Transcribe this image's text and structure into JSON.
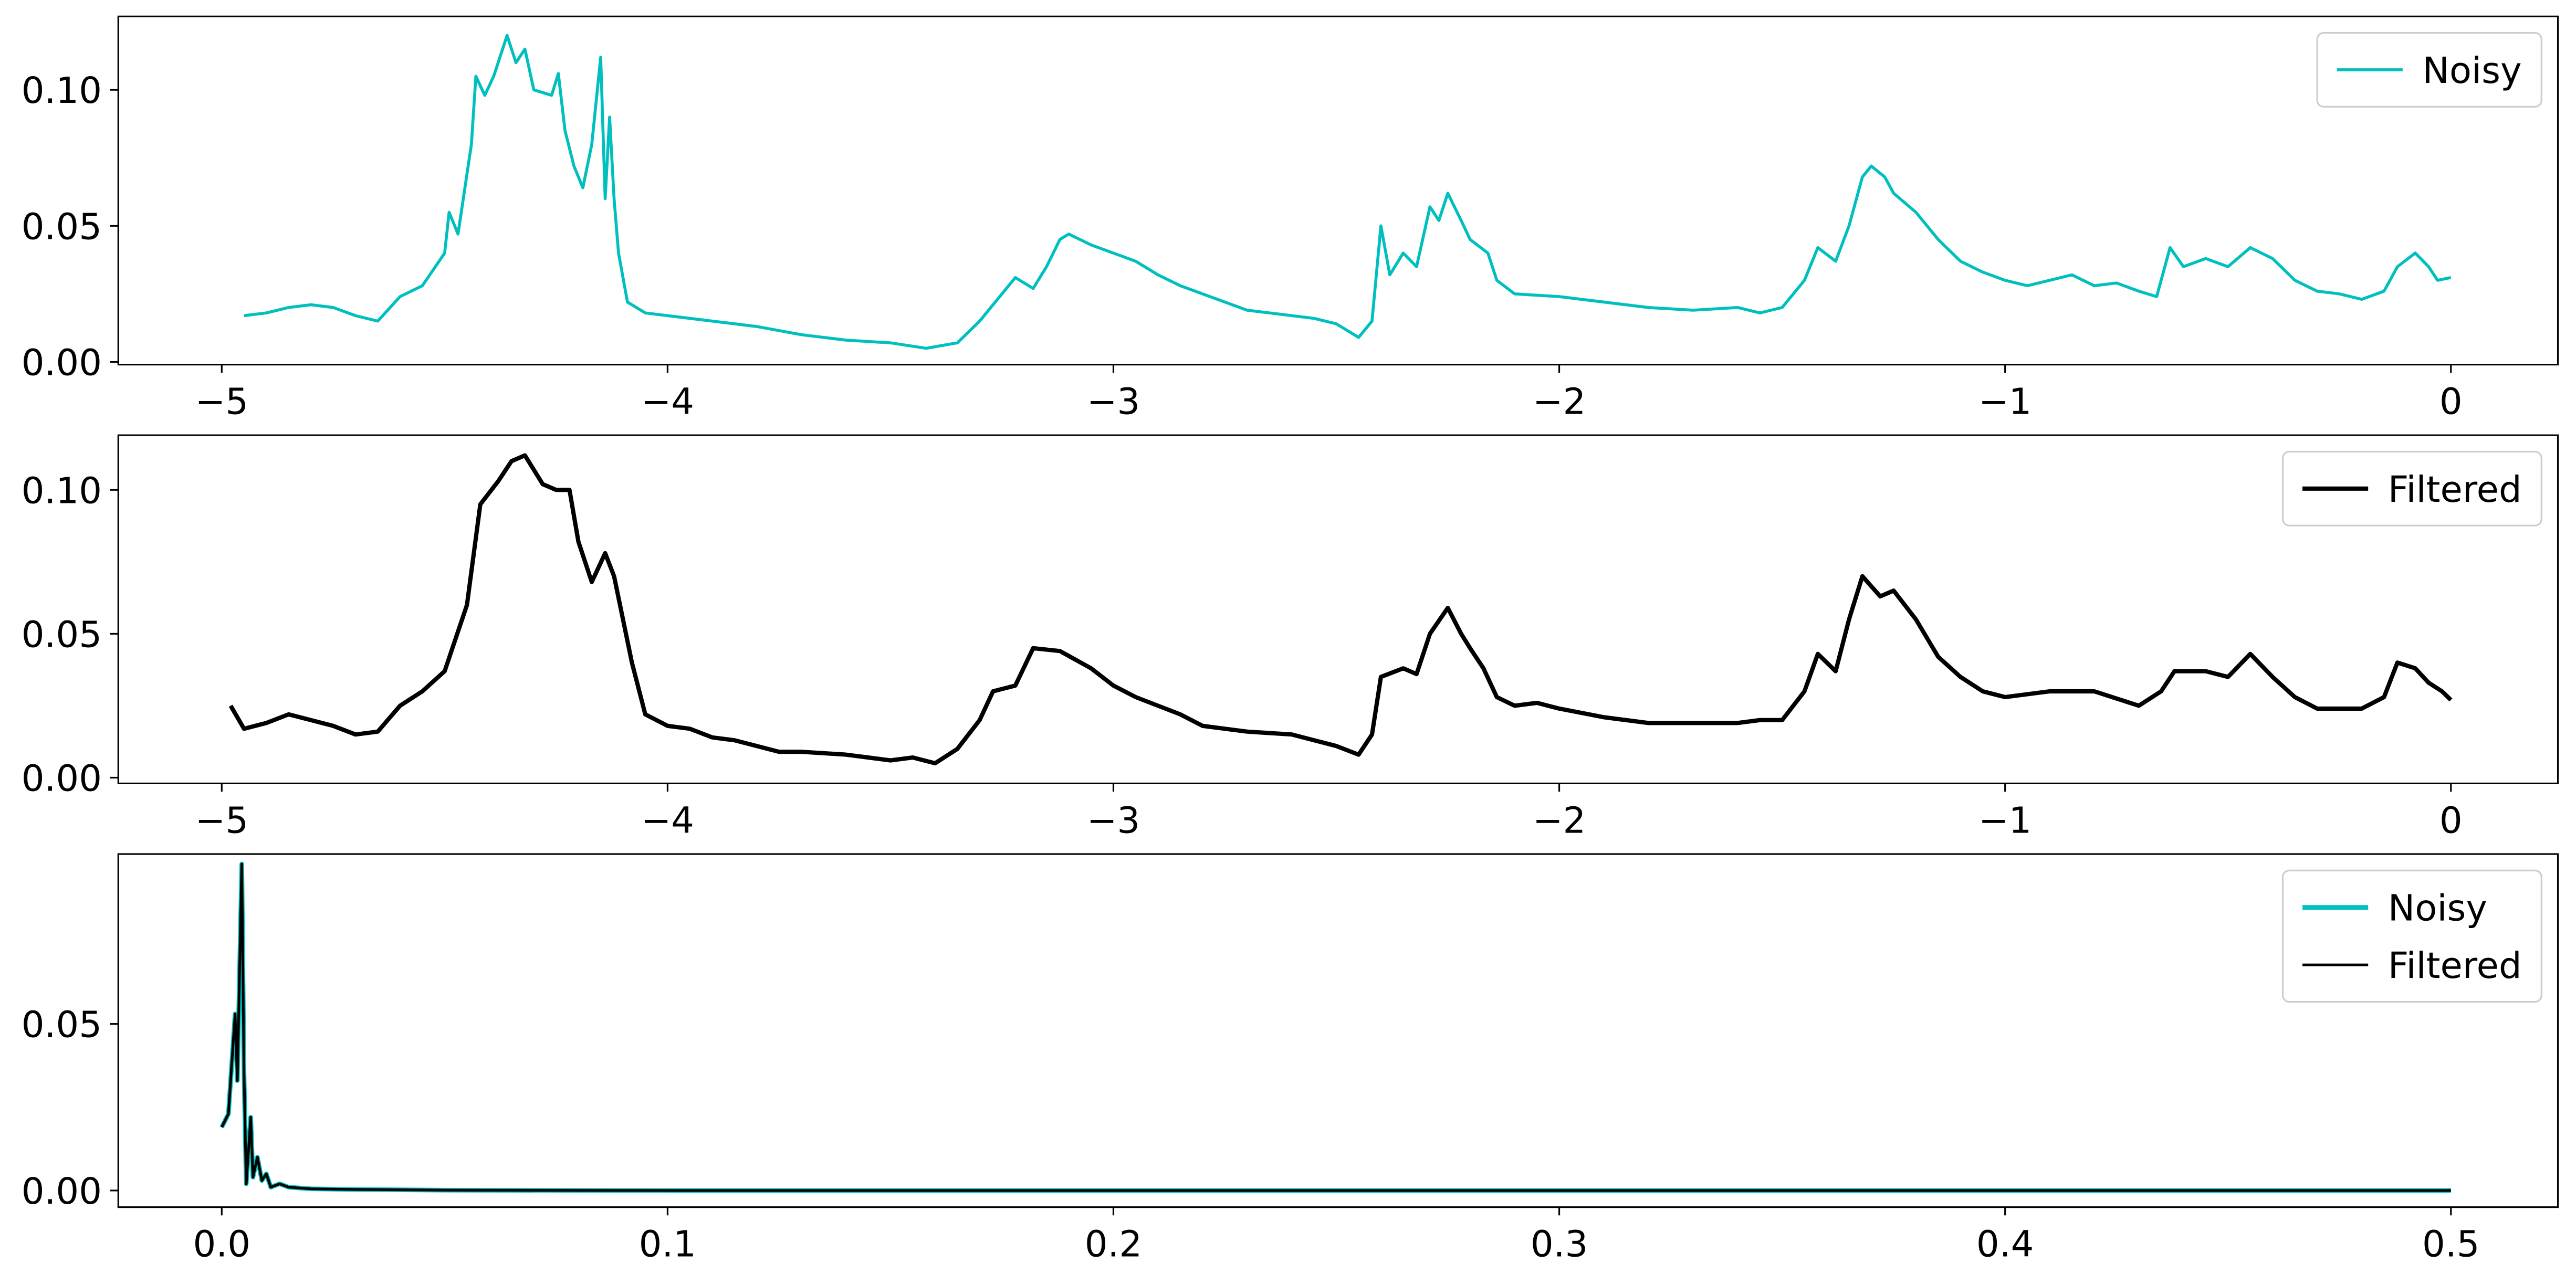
{
  "chart_data": [
    {
      "type": "line",
      "legend": "upper right",
      "xlim": [
        -5.232,
        0.24
      ],
      "ylim": [
        -0.001,
        0.127
      ],
      "xticks": [
        {
          "value": -5,
          "label": "−5"
        },
        {
          "value": -4,
          "label": "−4"
        },
        {
          "value": -3,
          "label": "−3"
        },
        {
          "value": -2,
          "label": "−2"
        },
        {
          "value": -1,
          "label": "−1"
        },
        0
      ],
      "yticks": [
        {
          "value": 0,
          "label": "0.00"
        },
        {
          "value": 0.05,
          "label": "0.05"
        },
        {
          "value": 0.1,
          "label": "0.10"
        }
      ],
      "x": [
        -4.95,
        -4.9,
        -4.85,
        -4.8,
        -4.75,
        -4.7,
        -4.65,
        -4.6,
        -4.55,
        -4.5,
        -4.49,
        -4.47,
        -4.44,
        -4.43,
        -4.41,
        -4.39,
        -4.36,
        -4.34,
        -4.32,
        -4.3,
        -4.26,
        -4.245,
        -4.23,
        -4.21,
        -4.19,
        -4.17,
        -4.15,
        -4.14,
        -4.13,
        -4.12,
        -4.11,
        -4.09,
        -4.05,
        -4.0,
        -3.9,
        -3.8,
        -3.7,
        -3.6,
        -3.5,
        -3.42,
        -3.35,
        -3.3,
        -3.25,
        -3.22,
        -3.18,
        -3.15,
        -3.12,
        -3.1,
        -3.05,
        -3.0,
        -2.95,
        -2.9,
        -2.85,
        -2.8,
        -2.75,
        -2.7,
        -2.65,
        -2.6,
        -2.55,
        -2.5,
        -2.45,
        -2.42,
        -2.4,
        -2.38,
        -2.35,
        -2.32,
        -2.29,
        -2.27,
        -2.25,
        -2.22,
        -2.2,
        -2.16,
        -2.14,
        -2.1,
        -2.0,
        -1.9,
        -1.8,
        -1.7,
        -1.6,
        -1.55,
        -1.5,
        -1.45,
        -1.42,
        -1.38,
        -1.35,
        -1.32,
        -1.3,
        -1.27,
        -1.25,
        -1.2,
        -1.15,
        -1.1,
        -1.05,
        -1.0,
        -0.95,
        -0.9,
        -0.85,
        -0.8,
        -0.75,
        -0.7,
        -0.66,
        -0.63,
        -0.6,
        -0.55,
        -0.5,
        -0.45,
        -0.4,
        -0.35,
        -0.3,
        -0.25,
        -0.2,
        -0.15,
        -0.12,
        -0.08,
        -0.05,
        -0.03,
        0
      ],
      "series": [
        {
          "name": "Noisy",
          "color": "#00bfbf",
          "values": [
            0.017,
            0.018,
            0.02,
            0.021,
            0.02,
            0.017,
            0.015,
            0.024,
            0.028,
            0.04,
            0.055,
            0.047,
            0.08,
            0.105,
            0.098,
            0.105,
            0.12,
            0.11,
            0.115,
            0.1,
            0.098,
            0.106,
            0.085,
            0.072,
            0.064,
            0.08,
            0.112,
            0.06,
            0.09,
            0.06,
            0.04,
            0.022,
            0.018,
            0.017,
            0.015,
            0.013,
            0.01,
            0.008,
            0.007,
            0.005,
            0.007,
            0.015,
            0.025,
            0.031,
            0.027,
            0.035,
            0.045,
            0.047,
            0.043,
            0.04,
            0.037,
            0.032,
            0.028,
            0.025,
            0.022,
            0.019,
            0.018,
            0.017,
            0.016,
            0.014,
            0.009,
            0.015,
            0.05,
            0.032,
            0.04,
            0.035,
            0.057,
            0.052,
            0.062,
            0.052,
            0.045,
            0.04,
            0.03,
            0.025,
            0.024,
            0.022,
            0.02,
            0.019,
            0.02,
            0.018,
            0.02,
            0.03,
            0.042,
            0.037,
            0.05,
            0.068,
            0.072,
            0.068,
            0.062,
            0.055,
            0.045,
            0.037,
            0.033,
            0.03,
            0.028,
            0.03,
            0.032,
            0.028,
            0.029,
            0.026,
            0.024,
            0.042,
            0.035,
            0.038,
            0.035,
            0.042,
            0.038,
            0.03,
            0.026,
            0.025,
            0.023,
            0.026,
            0.035,
            0.04,
            0.035,
            0.03,
            0.031
          ]
        }
      ]
    },
    {
      "type": "line",
      "legend": "upper right",
      "xlim": [
        -5.232,
        0.24
      ],
      "ylim": [
        -0.002,
        0.119
      ],
      "xticks": [
        {
          "value": -5,
          "label": "−5"
        },
        {
          "value": -4,
          "label": "−4"
        },
        {
          "value": -3,
          "label": "−3"
        },
        {
          "value": -2,
          "label": "−2"
        },
        {
          "value": -1,
          "label": "−1"
        },
        0
      ],
      "yticks": [
        {
          "value": 0,
          "label": "0.00"
        },
        {
          "value": 0.05,
          "label": "0.05"
        },
        {
          "value": 0.1,
          "label": "0.10"
        }
      ],
      "x": [
        -4.98,
        -4.95,
        -4.9,
        -4.85,
        -4.8,
        -4.75,
        -4.7,
        -4.65,
        -4.6,
        -4.55,
        -4.5,
        -4.45,
        -4.42,
        -4.38,
        -4.35,
        -4.32,
        -4.28,
        -4.25,
        -4.22,
        -4.2,
        -4.17,
        -4.14,
        -4.12,
        -4.08,
        -4.05,
        -4.0,
        -3.95,
        -3.9,
        -3.85,
        -3.8,
        -3.75,
        -3.7,
        -3.6,
        -3.5,
        -3.45,
        -3.4,
        -3.35,
        -3.3,
        -3.27,
        -3.22,
        -3.18,
        -3.12,
        -3.05,
        -3.0,
        -2.95,
        -2.85,
        -2.8,
        -2.7,
        -2.6,
        -2.5,
        -2.45,
        -2.42,
        -2.4,
        -2.35,
        -2.32,
        -2.29,
        -2.25,
        -2.22,
        -2.2,
        -2.17,
        -2.14,
        -2.1,
        -2.05,
        -2.0,
        -1.9,
        -1.8,
        -1.7,
        -1.6,
        -1.55,
        -1.5,
        -1.45,
        -1.42,
        -1.38,
        -1.35,
        -1.32,
        -1.28,
        -1.25,
        -1.2,
        -1.15,
        -1.1,
        -1.05,
        -1.0,
        -0.9,
        -0.8,
        -0.7,
        -0.65,
        -0.62,
        -0.55,
        -0.5,
        -0.45,
        -0.4,
        -0.35,
        -0.3,
        -0.2,
        -0.15,
        -0.12,
        -0.08,
        -0.05,
        -0.02,
        0
      ],
      "series": [
        {
          "name": "Filtered",
          "color": "#000000",
          "values": [
            0.025,
            0.017,
            0.019,
            0.022,
            0.02,
            0.018,
            0.015,
            0.016,
            0.025,
            0.03,
            0.037,
            0.06,
            0.095,
            0.103,
            0.11,
            0.112,
            0.102,
            0.1,
            0.1,
            0.082,
            0.068,
            0.078,
            0.07,
            0.04,
            0.022,
            0.018,
            0.017,
            0.014,
            0.013,
            0.011,
            0.009,
            0.009,
            0.008,
            0.006,
            0.007,
            0.005,
            0.01,
            0.02,
            0.03,
            0.032,
            0.045,
            0.044,
            0.038,
            0.032,
            0.028,
            0.022,
            0.018,
            0.016,
            0.015,
            0.011,
            0.008,
            0.015,
            0.035,
            0.038,
            0.036,
            0.05,
            0.059,
            0.05,
            0.045,
            0.038,
            0.028,
            0.025,
            0.026,
            0.024,
            0.021,
            0.019,
            0.019,
            0.019,
            0.02,
            0.02,
            0.03,
            0.043,
            0.037,
            0.055,
            0.07,
            0.063,
            0.065,
            0.055,
            0.042,
            0.035,
            0.03,
            0.028,
            0.03,
            0.03,
            0.025,
            0.03,
            0.037,
            0.037,
            0.035,
            0.043,
            0.035,
            0.028,
            0.024,
            0.024,
            0.028,
            0.04,
            0.038,
            0.033,
            0.03,
            0.027
          ]
        }
      ]
    },
    {
      "type": "line",
      "legend": "upper right",
      "xlim": [
        -0.0232,
        0.524
      ],
      "ylim": [
        -0.005,
        0.101
      ],
      "xticks": [
        {
          "value": 0,
          "label": "0.0"
        },
        0.1,
        0.2,
        0.3,
        0.4,
        0.5
      ],
      "yticks": [
        {
          "value": 0,
          "label": "0.00"
        },
        {
          "value": 0.05,
          "label": "0.05"
        }
      ],
      "x": [
        0,
        0.0015,
        0.003,
        0.0035,
        0.0045,
        0.005,
        0.0055,
        0.0065,
        0.007,
        0.008,
        0.009,
        0.01,
        0.011,
        0.013,
        0.015,
        0.02,
        0.03,
        0.05,
        0.1,
        0.5
      ],
      "series": [
        {
          "name": "Noisy",
          "color": "#00bfbf",
          "values": [
            0.019,
            0.023,
            0.053,
            0.033,
            0.098,
            0.035,
            0.002,
            0.022,
            0.004,
            0.01,
            0.003,
            0.005,
            0.001,
            0.002,
            0.001,
            0.0005,
            0.0003,
            0.0001,
            0,
            0
          ]
        },
        {
          "name": "Filtered",
          "color": "#000000",
          "values": [
            0.019,
            0.023,
            0.053,
            0.033,
            0.098,
            0.035,
            0.002,
            0.022,
            0.004,
            0.01,
            0.003,
            0.005,
            0.001,
            0.002,
            0.001,
            0.0005,
            0.0003,
            0.0001,
            0,
            0
          ]
        }
      ]
    }
  ]
}
